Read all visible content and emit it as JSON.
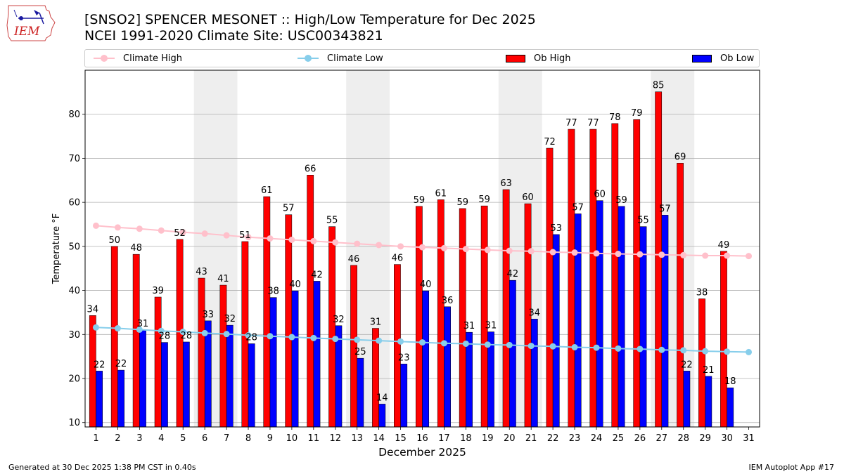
{
  "header": {
    "logo_text": "IEM",
    "title_line1": "[SNSO2] SPENCER MESONET :: High/Low Temperature for Dec 2025",
    "title_line2": "NCEI 1991-2020 Climate Site: USC00343821"
  },
  "legend": [
    {
      "label": "Climate High",
      "kind": "line",
      "color": "#ffc0cb"
    },
    {
      "label": "Climate Low",
      "kind": "line",
      "color": "#87ceeb"
    },
    {
      "label": "Ob High",
      "kind": "bar",
      "color": "#ff0000"
    },
    {
      "label": "Ob Low",
      "kind": "bar",
      "color": "#0000ff"
    }
  ],
  "footer": {
    "left": "Generated at 30 Dec 2025 1:38 PM CST in 0.40s",
    "right": "IEM Autoplot App #17"
  },
  "chart_data": {
    "type": "bar",
    "xlabel": "December 2025",
    "ylabel": "Temperature °F",
    "ylim": [
      9,
      90
    ],
    "yticks": [
      10,
      20,
      30,
      40,
      50,
      60,
      70,
      80
    ],
    "xlim": [
      0.5,
      31.5
    ],
    "grid": "horizontal",
    "legend_position": "top",
    "x": [
      1,
      2,
      3,
      4,
      5,
      6,
      7,
      8,
      9,
      10,
      11,
      12,
      13,
      14,
      15,
      16,
      17,
      18,
      19,
      20,
      21,
      22,
      23,
      24,
      25,
      26,
      27,
      28,
      29,
      30,
      31
    ],
    "weekend_shading": [
      [
        5.5,
        7.5
      ],
      [
        12.5,
        14.5
      ],
      [
        19.5,
        21.5
      ],
      [
        26.5,
        28.5
      ]
    ],
    "series": [
      {
        "name": "Ob High",
        "kind": "bar",
        "color": "#ff0000",
        "values": [
          34.3,
          50,
          48.2,
          38.5,
          51.6,
          42.8,
          41.2,
          51.1,
          61.3,
          57.2,
          66.2,
          54.5,
          45.7,
          31.4,
          45.9,
          59.1,
          60.6,
          58.6,
          59.2,
          62.9,
          59.7,
          72.3,
          76.6,
          76.6,
          77.9,
          78.8,
          85.1,
          68.9,
          38.1,
          48.9,
          null
        ]
      },
      {
        "name": "Ob Low",
        "kind": "bar",
        "color": "#0000ff",
        "values": [
          21.7,
          21.9,
          31,
          28.2,
          28.3,
          33.1,
          32.1,
          27.9,
          38.4,
          39.9,
          42.1,
          32,
          24.6,
          14.2,
          23.3,
          39.9,
          36.3,
          30.5,
          30.6,
          42.3,
          33.5,
          52.7,
          57.4,
          60.4,
          59.1,
          54.5,
          57.1,
          21.7,
          20.5,
          17.9,
          null
        ]
      },
      {
        "name": "Climate High",
        "kind": "line",
        "color": "#ffc0cb",
        "values": [
          54.7,
          54.3,
          54,
          53.6,
          53.2,
          52.9,
          52.5,
          52.1,
          51.8,
          51.5,
          51.2,
          50.9,
          50.6,
          50.3,
          50,
          49.8,
          49.6,
          49.4,
          49.2,
          49,
          48.9,
          48.7,
          48.6,
          48.4,
          48.3,
          48.2,
          48.1,
          48,
          47.9,
          47.9,
          47.8
        ]
      },
      {
        "name": "Climate Low",
        "kind": "line",
        "color": "#87ceeb",
        "values": [
          31.6,
          31.4,
          31.1,
          30.8,
          30.6,
          30.3,
          30.1,
          29.8,
          29.6,
          29.4,
          29.2,
          29,
          28.8,
          28.6,
          28.4,
          28.2,
          28,
          27.9,
          27.7,
          27.6,
          27.4,
          27.3,
          27.1,
          27,
          26.8,
          26.7,
          26.5,
          26.4,
          26.2,
          26.1,
          26
        ]
      }
    ]
  }
}
